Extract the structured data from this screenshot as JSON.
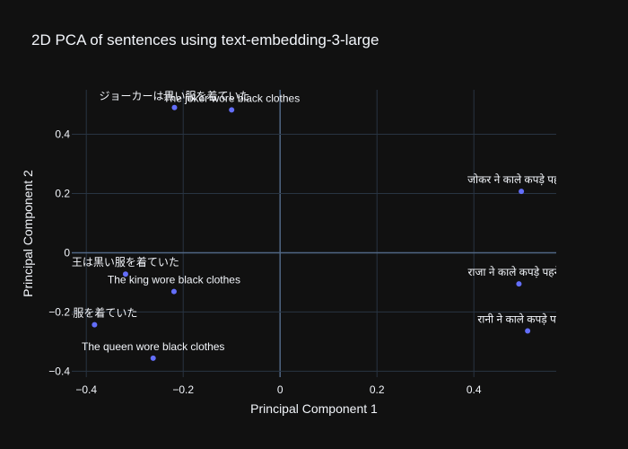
{
  "chart_data": {
    "type": "scatter",
    "title": "2D PCA of sentences using text-embedding-3-large",
    "xlabel": "Principal Component 1",
    "ylabel": "Principal Component 2",
    "xlim": [
      -0.43,
      0.57
    ],
    "ylim": [
      -0.42,
      0.55
    ],
    "xticks": [
      -0.4,
      -0.2,
      0,
      0.2,
      0.4
    ],
    "xtick_labels": [
      "−0.4",
      "−0.2",
      "0",
      "0.2",
      "0.4"
    ],
    "yticks": [
      -0.4,
      -0.2,
      0,
      0.2,
      0.4
    ],
    "ytick_labels": [
      "−0.4",
      "−0.2",
      "0",
      "0.2",
      "0.4"
    ],
    "grid": true,
    "marker_color": "#636efa",
    "points": [
      {
        "x": -0.218,
        "y": 0.49,
        "label": "ジョーカーは黒い服を着ていた"
      },
      {
        "x": -0.1,
        "y": 0.482,
        "label": "The joker wore black clothes"
      },
      {
        "x": 0.498,
        "y": 0.207,
        "label": "जोकर ने काले कपड़े पहने थे"
      },
      {
        "x": -0.319,
        "y": -0.072,
        "label": "王は黒い服を着ていた"
      },
      {
        "x": -0.219,
        "y": -0.131,
        "label": "The king wore black clothes"
      },
      {
        "x": 0.493,
        "y": -0.105,
        "label": "राजा ने काले कपड़े पहने थे"
      },
      {
        "x": -0.383,
        "y": -0.243,
        "label": "黒い服を着ていた"
      },
      {
        "x": 0.511,
        "y": -0.264,
        "label": "रानी ने काले कपड़े पहने थे"
      },
      {
        "x": -0.262,
        "y": -0.356,
        "label": "The queen wore black clothes"
      }
    ]
  }
}
